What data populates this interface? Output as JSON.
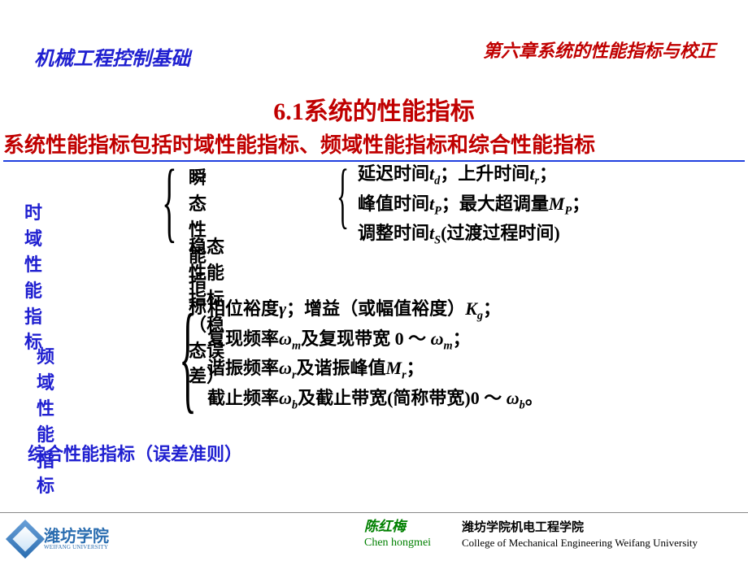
{
  "header": {
    "left": "机械工程控制基础",
    "right": "第六章系统的性能指标与校正"
  },
  "sectionTitle": "6.1系统的性能指标",
  "subtitle": "系统性能指标包括时域性能指标、频域性能指标和综合性能指标",
  "time": {
    "label": "时域性能指标",
    "transient": "瞬态性能指标",
    "steady": "稳态性能指标（稳态误差）",
    "lines": {
      "l1a": "延迟时间",
      "l1b": "；上升时间",
      "l1c": "；",
      "l2a": "峰值时间",
      "l2b": "；最大超调量",
      "l2c": "；",
      "l3a": "调整时间",
      "l3b": "(过渡过程时间)"
    },
    "sym": {
      "td": "t",
      "tdS": "d",
      "tr": "t",
      "trS": "r",
      "tp": "t",
      "tpS": "P",
      "mp": "M",
      "mpS": "P",
      "ts": "t",
      "tsS": "S"
    }
  },
  "freq": {
    "label": "频域性能指标",
    "lines": {
      "l1a": "相位裕度",
      "l1b": "；增益（或幅值裕度）",
      "l1c": "；",
      "l2a": "复现频率",
      "l2b": "及复现带宽 0 ～ ",
      "l2c": "；",
      "l3a": "谐振频率",
      "l3b": "及谐振峰值",
      "l3c": "；",
      "l4a": "截止频率",
      "l4b": "及截止带宽(简称带宽)0 ～ ",
      "l4c": "。"
    },
    "sym": {
      "gamma": "γ",
      "kg": "K",
      "kgS": "g",
      "wm": "ω",
      "wmS": "m",
      "wr": "ω",
      "wrS": "r",
      "mr": "M",
      "mrS": "r",
      "wb": "ω",
      "wbS": "b"
    }
  },
  "comprehensive": "综合性能指标（误差准则）",
  "footer": {
    "logoCn": "潍坊学院",
    "logoEn": "WEIFANG UNIVERSITY",
    "authorCn": "陈红梅",
    "authorEn": "Chen hongmei",
    "collegeCn": "潍坊学院机电工程学院",
    "collegeEn": "College of Mechanical Engineering Weifang University"
  }
}
